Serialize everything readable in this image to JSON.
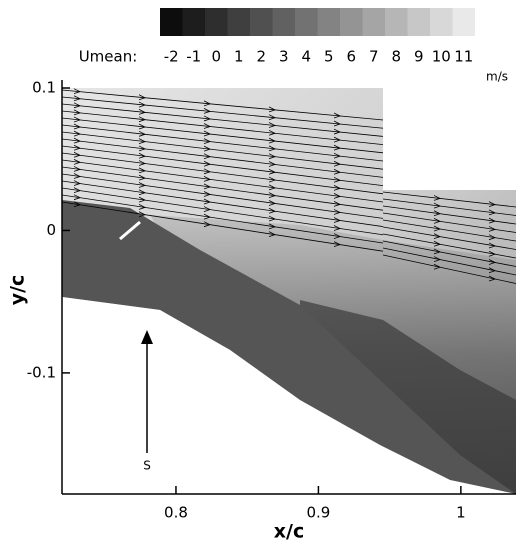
{
  "chart_data": {
    "type": "contour",
    "xlabel": "x/c",
    "ylabel": "y/c",
    "colorbar_label": "Umean:",
    "colorbar_unit": "m/s",
    "levels": [
      -2,
      -1,
      0,
      1,
      2,
      3,
      4,
      5,
      6,
      7,
      8,
      9,
      10,
      11
    ],
    "colors": [
      "#0d0d0d",
      "#1d1d1d",
      "#2e2e2e",
      "#3f3f3f",
      "#505050",
      "#616161",
      "#727272",
      "#838383",
      "#949494",
      "#a5a5a5",
      "#b6b6b6",
      "#c7c7c7",
      "#d8d8d8",
      "#e9e9e9"
    ],
    "xlim": [
      0.72,
      1.038
    ],
    "ylim": [
      -0.185,
      0.1
    ],
    "xticks": [
      0.8,
      0.9,
      1
    ],
    "yticks": [
      -0.1,
      0,
      0.1
    ],
    "annotation": "S"
  }
}
